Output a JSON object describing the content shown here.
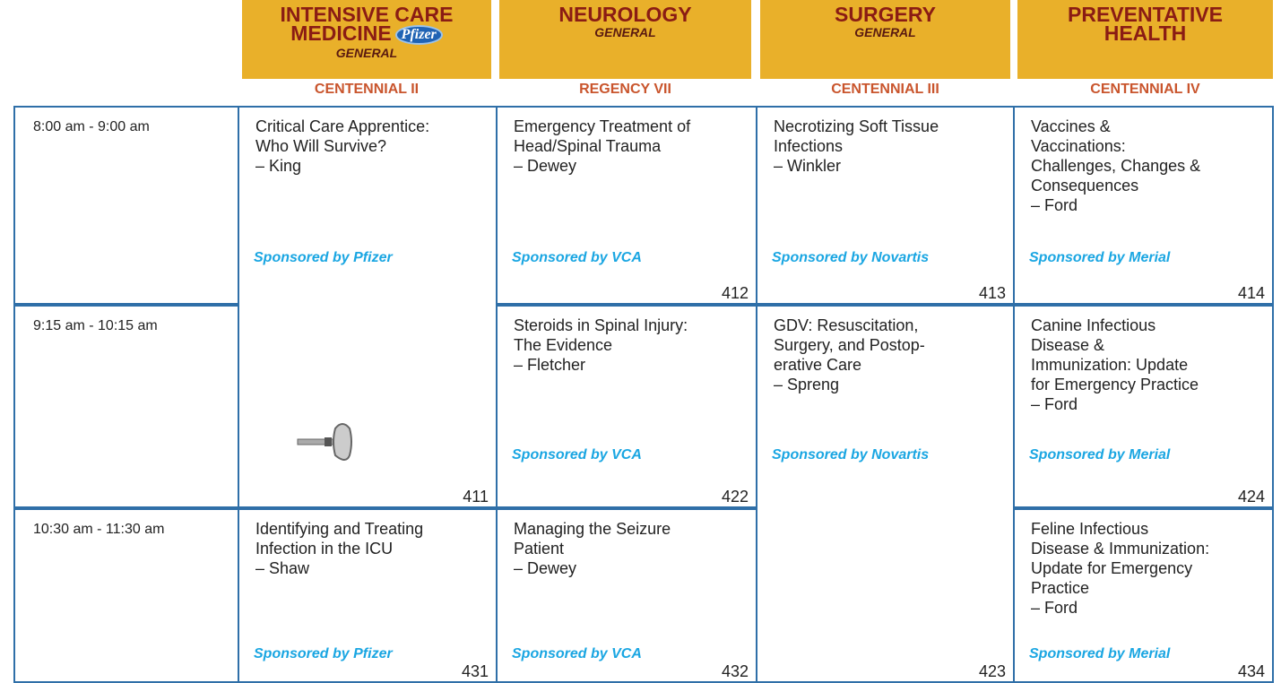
{
  "columns": [
    {
      "title": [
        "INTENSIVE CARE",
        "MEDICINE"
      ],
      "subtitle": "GENERAL",
      "logo": "Pfizer",
      "room": "CENTENNIAL II"
    },
    {
      "title": [
        "NEUROLOGY"
      ],
      "subtitle": "GENERAL",
      "room": "REGENCY VII"
    },
    {
      "title": [
        "SURGERY"
      ],
      "subtitle": "GENERAL",
      "room": "CENTENNIAL III"
    },
    {
      "title": [
        "PREVENTATIVE",
        "HEALTH"
      ],
      "room": "CENTENNIAL IV"
    }
  ],
  "time_slots": [
    "8:00 am - 9:00 am",
    "9:15 am - 10:15 am",
    "10:30 am - 11:30 am"
  ],
  "sessions": [
    {
      "title": [
        "Critical Care Apprentice:",
        "Who Will Survive?"
      ],
      "speaker": "– King",
      "sponsor": "Sponsored by Pfizer",
      "number": "411"
    },
    {
      "title": [
        "Identifying and Treating",
        "Infection in the ICU"
      ],
      "speaker": "– Shaw",
      "sponsor": "Sponsored by Pfizer",
      "number": "431"
    },
    {
      "title": [
        "Emergency Treatment of",
        "Head/Spinal Trauma"
      ],
      "speaker": "– Dewey",
      "sponsor": "Sponsored by VCA",
      "number": "412"
    },
    {
      "title": [
        "Steroids in Spinal Injury:",
        "The Evidence"
      ],
      "speaker": "– Fletcher",
      "sponsor": "Sponsored by VCA",
      "number": "422"
    },
    {
      "title": [
        "Managing the Seizure",
        "Patient"
      ],
      "speaker": "– Dewey",
      "sponsor": "Sponsored by VCA",
      "number": "432"
    },
    {
      "title": [
        "Necrotizing Soft Tissue",
        "Infections"
      ],
      "speaker": "– Winkler",
      "sponsor": "Sponsored by Novartis",
      "number": "413"
    },
    {
      "title": [
        "GDV: Resuscitation,",
        "Surgery, and Postop-",
        "erative Care"
      ],
      "speaker": "– Spreng",
      "sponsor": "Sponsored by Novartis",
      "number": "423"
    },
    {
      "title": [
        "Vaccines &",
        "Vaccinations:",
        "Challenges, Changes &",
        "Consequences"
      ],
      "speaker": "– Ford",
      "sponsor": "Sponsored by Merial",
      "number": "414"
    },
    {
      "title": [
        "Canine Infectious",
        "Disease &",
        "Immunization: Update",
        "for Emergency Practice"
      ],
      "speaker": "– Ford",
      "sponsor": "Sponsored by Merial",
      "number": "424"
    },
    {
      "title": [
        "Feline Infectious",
        "Disease & Immunization:",
        "Update for Emergency",
        "Practice"
      ],
      "speaker": "– Ford",
      "sponsor": "Sponsored by Merial",
      "number": "434"
    }
  ]
}
